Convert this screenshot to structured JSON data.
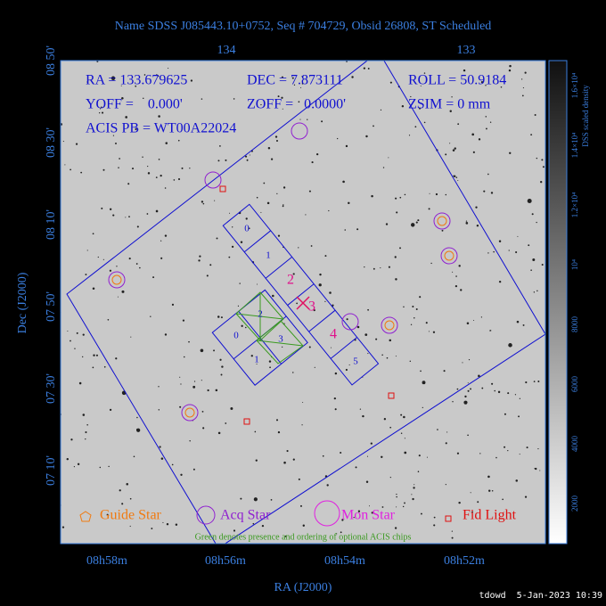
{
  "header": {
    "title": "Name SDSS J085443.10+0752, Seq # 704729, Obsid 26808, ST Scheduled"
  },
  "info": {
    "ra": "RA = 133.679625",
    "dec": "DEC = 7.873111",
    "roll": "ROLL = 50.9184",
    "yoff": "YOFF =    0.000'",
    "zoff": "ZOFF =   0.0000'",
    "zsim": "ZSIM = 0 mm",
    "acis": "ACIS PB = WT00A22024"
  },
  "axes": {
    "top_ticks": [
      "134",
      "133"
    ],
    "left_ticks": [
      "08 50'",
      "08 30'",
      "08 10'",
      "07 50'",
      "07 30'",
      "07 10'"
    ],
    "bottom_ticks": [
      "08h58m",
      "08h56m",
      "08h54m",
      "08h52m"
    ],
    "x_label": "RA (J2000)",
    "y_label": "Dec (J2000)"
  },
  "colorbar": {
    "label": "DSS scaled density",
    "ticks": [
      "2000",
      "4000",
      "6000",
      "8000",
      "10⁴",
      "1.2×10⁴",
      "1.4×10⁴",
      "1.6×10⁴"
    ]
  },
  "chips": {
    "acis_s": [
      "0",
      "1",
      "2",
      "3",
      "4",
      "5"
    ],
    "acis_i": [
      "0",
      "1",
      "2",
      "3"
    ]
  },
  "legend": {
    "guide": "Guide Star",
    "acq": "Acq Star",
    "mon": "Mon Star",
    "fid": "Fid Light"
  },
  "note": "Green denotes presence and ordering of optional ACIS chips",
  "footer": "tdowd  5-Jan-2023 10:39"
}
